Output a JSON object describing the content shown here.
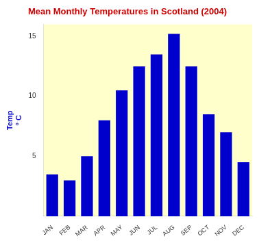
{
  "chart_data": {
    "type": "bar",
    "title": "Mean Monthly Temperatures in Scotland (2004)",
    "categories": [
      "JAN",
      "FEB",
      "MAR",
      "APR",
      "MAY",
      "JUN",
      "JUL",
      "AUG",
      "SEP",
      "OCT",
      "NOV",
      "DEC"
    ],
    "values": [
      3.5,
      3.0,
      5.0,
      8.0,
      10.5,
      12.5,
      13.5,
      15.2,
      12.5,
      8.5,
      7.0,
      4.5
    ],
    "color": "#0000cc",
    "ylabel": "Temp\n° C",
    "ylim": [
      0,
      16
    ],
    "yticks": [
      5,
      10,
      15
    ],
    "grid": false
  }
}
